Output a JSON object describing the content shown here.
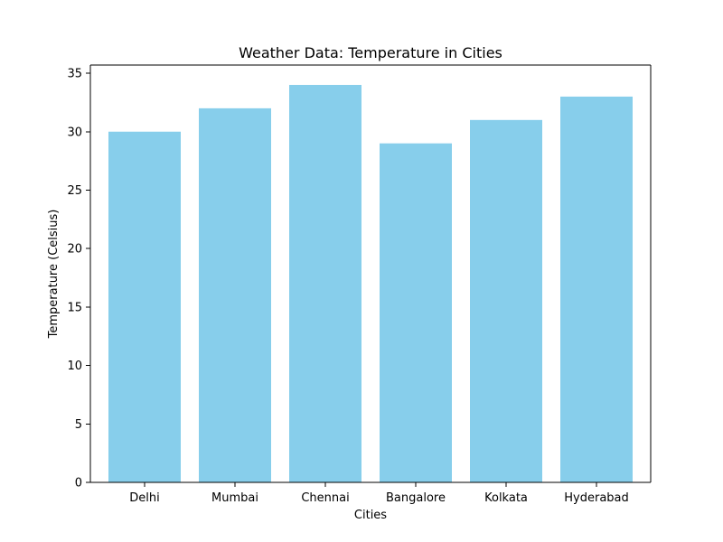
{
  "chart_data": {
    "type": "bar",
    "title": "Weather Data: Temperature in Cities",
    "xlabel": "Cities",
    "ylabel": "Temperature (Celsius)",
    "categories": [
      "Delhi",
      "Mumbai",
      "Chennai",
      "Bangalore",
      "Kolkata",
      "Hyderabad"
    ],
    "values": [
      30,
      32,
      34,
      29,
      31,
      33
    ],
    "ylim": [
      0,
      35.7
    ],
    "yticks": [
      0,
      5,
      10,
      15,
      20,
      25,
      30,
      35
    ],
    "bar_color": "#87ceeb",
    "grid": false,
    "legend": "none"
  }
}
